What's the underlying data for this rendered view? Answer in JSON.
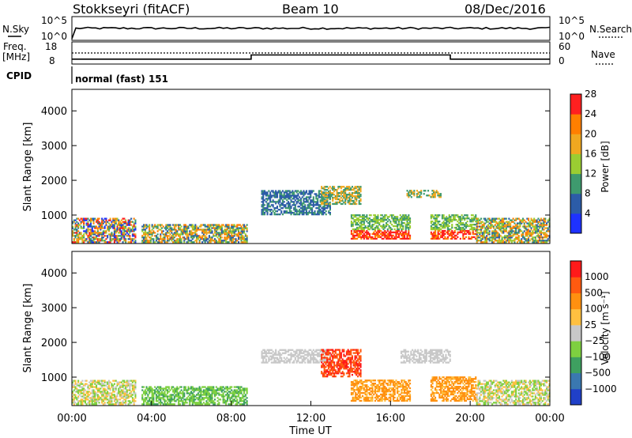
{
  "header": {
    "radar": "Stokkseyri (fitACF)",
    "beam": "Beam 10",
    "date": "08/Dec/2016"
  },
  "status_panels": {
    "nsky": {
      "label": "N.Sky",
      "tick_top": "10^5",
      "tick_bottom": "10^0"
    },
    "nsearch": {
      "label": "N.Search",
      "tick_top": "10^5",
      "tick_bottom": "10^0"
    },
    "freq": {
      "label_line1": "Freq.",
      "label_line2": "[MHz]",
      "tick_top": "18",
      "tick_bottom": "8"
    },
    "nave": {
      "label": "Nave",
      "tick_top": "60",
      "tick_bottom": "0"
    },
    "cpid": {
      "label": "CPID",
      "text": "normal (fast) 151"
    }
  },
  "chart_data": [
    {
      "type": "heatmap",
      "panel": "power",
      "ylabel": "Slant Range [km]",
      "yticks": [
        1000,
        2000,
        3000,
        4000
      ],
      "ylim": [
        180,
        4620
      ],
      "xlim": [
        0,
        24
      ],
      "colorbar": {
        "title": "Power [dB]",
        "ticks": [
          "4",
          "8",
          "12",
          "16",
          "20",
          "24",
          "28"
        ],
        "colors": [
          "#1e32ff",
          "#2c5ca8",
          "#3e9a6e",
          "#9acd32",
          "#f0a820",
          "#ff7f00",
          "#ff2020"
        ]
      },
      "series": [
        {
          "t": [
            0.0,
            3.2
          ],
          "r": [
            200,
            900
          ],
          "level": "mixed-high"
        },
        {
          "t": [
            3.5,
            8.8
          ],
          "r": [
            200,
            700
          ],
          "level": "mixed"
        },
        {
          "t": [
            9.5,
            13.0
          ],
          "r": [
            1000,
            1700
          ],
          "level": "low"
        },
        {
          "t": [
            12.5,
            14.5
          ],
          "r": [
            1300,
            1800
          ],
          "level": "mid"
        },
        {
          "t": [
            14.0,
            17.0
          ],
          "r": [
            300,
            1000
          ],
          "level": "high"
        },
        {
          "t": [
            16.8,
            18.5
          ],
          "r": [
            1500,
            1700
          ],
          "level": "mid"
        },
        {
          "t": [
            18.0,
            20.3
          ],
          "r": [
            300,
            1000
          ],
          "level": "high"
        },
        {
          "t": [
            20.3,
            24.0
          ],
          "r": [
            200,
            900
          ],
          "level": "mixed"
        }
      ]
    },
    {
      "type": "heatmap",
      "panel": "velocity",
      "ylabel": "Slant Range [km]",
      "yticks": [
        1000,
        2000,
        3000,
        4000
      ],
      "ylim": [
        180,
        4620
      ],
      "xlim": [
        0,
        24
      ],
      "xticks": [
        "00:00",
        "04:00",
        "08:00",
        "12:00",
        "16:00",
        "20:00",
        "00:00"
      ],
      "xlabel": "Time UT",
      "colorbar": {
        "title": "Velocity [m s⁻¹]",
        "ticks": [
          "1000",
          "500",
          "100",
          "25",
          "−25",
          "−100",
          "−500",
          "−1000"
        ],
        "colors": [
          "#2040c8",
          "#3a78b0",
          "#3ea060",
          "#7ed040",
          "#c8c8c8",
          "#ffc040",
          "#ff9010",
          "#ff5a10",
          "#ff1a1a"
        ]
      },
      "series": [
        {
          "t": [
            0.0,
            3.2
          ],
          "r": [
            200,
            900
          ],
          "level": "mixed-green"
        },
        {
          "t": [
            3.5,
            8.8
          ],
          "r": [
            200,
            700
          ],
          "level": "green"
        },
        {
          "t": [
            9.5,
            13.0
          ],
          "r": [
            1400,
            1800
          ],
          "level": "grey"
        },
        {
          "t": [
            12.5,
            14.5
          ],
          "r": [
            1000,
            1800
          ],
          "level": "red-orange"
        },
        {
          "t": [
            14.0,
            17.0
          ],
          "r": [
            300,
            900
          ],
          "level": "orange"
        },
        {
          "t": [
            16.5,
            19.0
          ],
          "r": [
            1400,
            1800
          ],
          "level": "grey"
        },
        {
          "t": [
            18.0,
            20.3
          ],
          "r": [
            300,
            1000
          ],
          "level": "orange"
        },
        {
          "t": [
            20.3,
            24.0
          ],
          "r": [
            200,
            900
          ],
          "level": "mixed-green"
        }
      ]
    }
  ],
  "freq_trace": {
    "ylim": [
      8,
      18
    ],
    "segments": [
      {
        "t": [
          0,
          9.0
        ],
        "mhz": 10.2
      },
      {
        "t": [
          9.0,
          19.0
        ],
        "mhz": 12.1
      },
      {
        "t": [
          19.0,
          24
        ],
        "mhz": 10.2
      }
    ],
    "nave_ylim": [
      0,
      60
    ],
    "nave": 30
  }
}
